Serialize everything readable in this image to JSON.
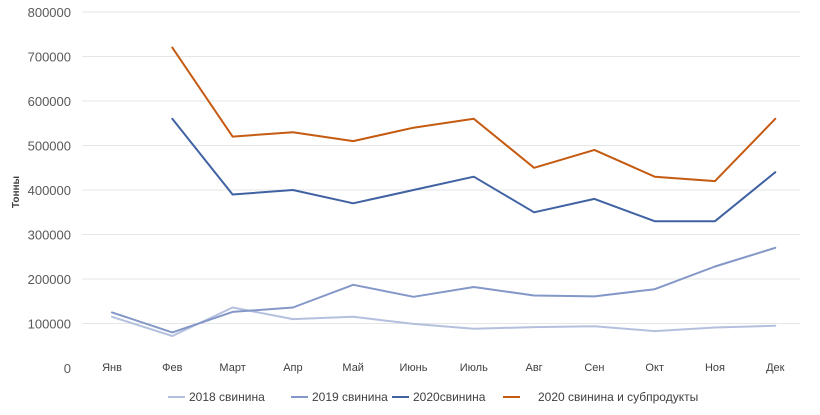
{
  "chart_data": {
    "type": "line",
    "title": "",
    "xlabel": "",
    "ylabel": "Тонны",
    "ylim": [
      0,
      800000
    ],
    "yticks": [
      0,
      100000,
      200000,
      300000,
      400000,
      500000,
      600000,
      700000,
      800000
    ],
    "grid": true,
    "legend_position": "bottom",
    "categories": [
      "Янв",
      "Фев",
      "Март",
      "Апр",
      "Май",
      "Июнь",
      "Июль",
      "Авг",
      "Сен",
      "Окт",
      "Ноя",
      "Дек"
    ],
    "series": [
      {
        "name": "2018 свинина",
        "color": "#b4c0de",
        "values": [
          115000,
          72000,
          136000,
          110000,
          115000,
          99000,
          88000,
          92000,
          94000,
          83000,
          91000,
          95000
        ]
      },
      {
        "name": "2019 свинина",
        "color": "#8397c8",
        "values": [
          125000,
          80000,
          126000,
          136000,
          187000,
          160000,
          182000,
          163000,
          161000,
          177000,
          228000,
          270000
        ]
      },
      {
        "name": "2020свинина",
        "color": "#4062a3",
        "values": [
          null,
          560000,
          390000,
          400000,
          370000,
          400000,
          430000,
          350000,
          380000,
          330000,
          330000,
          440000
        ]
      },
      {
        "name": "2020 свинина и субпродукты",
        "color": "#c55a11",
        "values": [
          null,
          720000,
          520000,
          530000,
          510000,
          540000,
          560000,
          450000,
          490000,
          430000,
          420000,
          560000
        ]
      }
    ]
  }
}
